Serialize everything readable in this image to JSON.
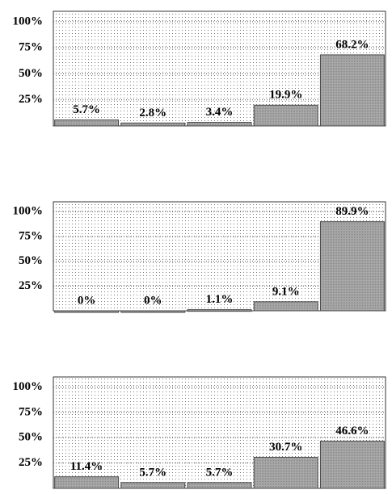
{
  "chart_data": [
    {
      "type": "bar",
      "categories": [
        null,
        null,
        null,
        null,
        null
      ],
      "values": [
        5.7,
        2.8,
        3.4,
        19.9,
        68.2
      ],
      "value_labels": [
        "5.7%",
        "2.8%",
        "3.4%",
        "19.9%",
        "68.2%"
      ],
      "color": "#a9a9a9",
      "ylim": [
        0,
        110
      ],
      "yticks": [
        {
          "value": 25,
          "label": "25%"
        },
        {
          "value": 50,
          "label": "50%"
        },
        {
          "value": 75,
          "label": "75%"
        },
        {
          "value": 100,
          "label": "100%"
        }
      ],
      "grid": true
    },
    {
      "type": "bar",
      "categories": [
        null,
        null,
        null,
        null,
        null
      ],
      "values": [
        0,
        0,
        1.1,
        9.1,
        89.9
      ],
      "value_labels": [
        "0%",
        "0%",
        "1.1%",
        "9.1%",
        "89.9%"
      ],
      "color": "#a9a9a9",
      "ylim": [
        0,
        110
      ],
      "yticks": [
        {
          "value": 25,
          "label": "25%"
        },
        {
          "value": 50,
          "label": "50%"
        },
        {
          "value": 75,
          "label": "75%"
        },
        {
          "value": 100,
          "label": "100%"
        }
      ],
      "grid": true
    },
    {
      "type": "bar",
      "categories": [
        null,
        null,
        null,
        null,
        null
      ],
      "values": [
        11.4,
        5.7,
        5.7,
        30.7,
        46.6
      ],
      "value_labels": [
        "11.4%",
        "5.7%",
        "5.7%",
        "30.7%",
        "46.6%"
      ],
      "color": "#a9a9a9",
      "ylim": [
        0,
        110
      ],
      "yticks": [
        {
          "value": 25,
          "label": "25%"
        },
        {
          "value": 50,
          "label": "50%"
        },
        {
          "value": 75,
          "label": "75%"
        },
        {
          "value": 100,
          "label": "100%"
        }
      ],
      "grid": true
    }
  ]
}
